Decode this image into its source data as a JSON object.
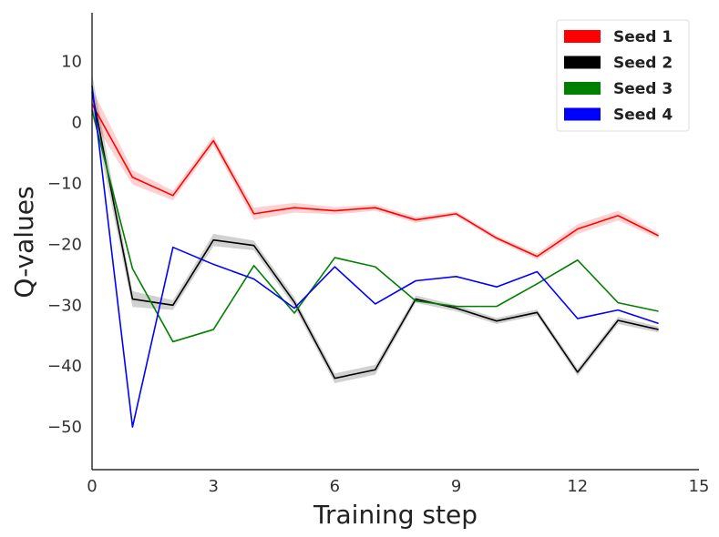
{
  "chart_data": {
    "type": "line",
    "title": "",
    "xlabel": "Training step",
    "ylabel": "Q-values",
    "xlim": [
      0,
      15
    ],
    "ylim": [
      -57,
      18
    ],
    "xticks": [
      0,
      3,
      6,
      9,
      12,
      15
    ],
    "yticks": [
      10,
      0,
      -10,
      -20,
      -30,
      -40,
      -50
    ],
    "xtick_labels": [
      "0",
      "3",
      "6",
      "9",
      "12",
      "15"
    ],
    "ytick_labels": [
      "10",
      "0",
      "−10",
      "−20",
      "−30",
      "−40",
      "−50"
    ],
    "grid": false,
    "legend_position": "top-right",
    "x": [
      0,
      1,
      2,
      3,
      4,
      5,
      6,
      7,
      8,
      9,
      10,
      11,
      12,
      13,
      14
    ],
    "series": [
      {
        "name": "Seed 1",
        "color": "#ff0000",
        "values": [
          3,
          -9,
          -12,
          -3,
          -15,
          -14,
          -14.5,
          -14,
          -16,
          -15,
          -19,
          -22,
          -17.5,
          -15.3,
          -18.6
        ],
        "band": [
          2.5,
          1.2,
          0.8,
          0.8,
          1.0,
          0.8,
          0.6,
          0.5,
          0.5,
          0.4,
          0.4,
          0.5,
          0.8,
          0.8,
          0.5
        ]
      },
      {
        "name": "Seed 2",
        "color": "#000000",
        "values": [
          5,
          -29,
          -30,
          -19.3,
          -20.2,
          -29.5,
          -42,
          -40.6,
          -29,
          -30.5,
          -32.6,
          -31.2,
          -41,
          -32.5,
          -34
        ],
        "band": [
          3,
          1.3,
          0.8,
          1.0,
          0.8,
          0.8,
          0.8,
          0.8,
          0.6,
          0.5,
          0.5,
          0.5,
          0.6,
          0.6,
          0.5
        ]
      },
      {
        "name": "Seed 3",
        "color": "#008000",
        "values": [
          2,
          -24,
          -36,
          -34,
          -23.5,
          -31.3,
          -22.2,
          -23.7,
          -29.3,
          -30.2,
          -30.2,
          -26.5,
          -22.6,
          -29.6,
          -31
        ]
      },
      {
        "name": "Seed 4",
        "color": "#0000ff",
        "values": [
          6,
          -50,
          -20.5,
          -23.3,
          -25.7,
          -30.5,
          -23.7,
          -29.8,
          -26,
          -25.3,
          -27,
          -24.5,
          -32.2,
          -30.8,
          -33
        ]
      }
    ]
  }
}
